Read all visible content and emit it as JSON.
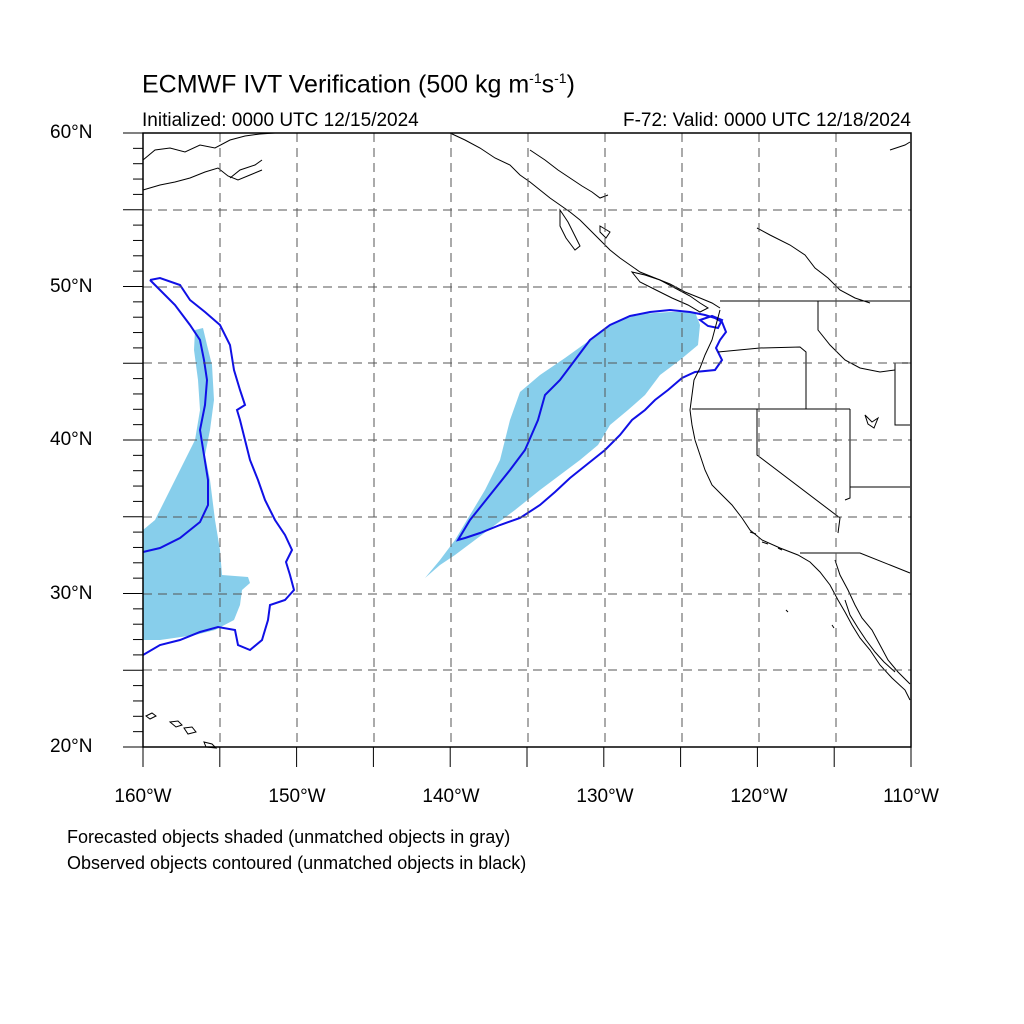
{
  "title": {
    "text": "ECMWF IVT Verification (500 kg m",
    "sup1": "-1",
    "mid": "s",
    "sup2": "-1",
    "end": ")"
  },
  "subtitle_left": "Initialized: 0000 UTC 12/15/2024",
  "subtitle_right": "F-72: Valid: 0000 UTC 12/18/2024",
  "lat_labels": [
    "60°N",
    "50°N",
    "40°N",
    "30°N",
    "20°N"
  ],
  "lon_labels": [
    "160°W",
    "150°W",
    "140°W",
    "130°W",
    "120°W",
    "110°W"
  ],
  "footnotes": [
    "Forecasted objects shaded (unmatched objects in gray)",
    "Observed objects contoured (unmatched objects in black)"
  ],
  "map_extent": {
    "lon_min": -160,
    "lon_max": -110,
    "lat_min": 20,
    "lat_max": 60
  },
  "colors": {
    "forecast_fill": "#87ceeb",
    "observed_contour": "#1010e6",
    "coastline": "#000000",
    "grid": "#555555"
  }
}
